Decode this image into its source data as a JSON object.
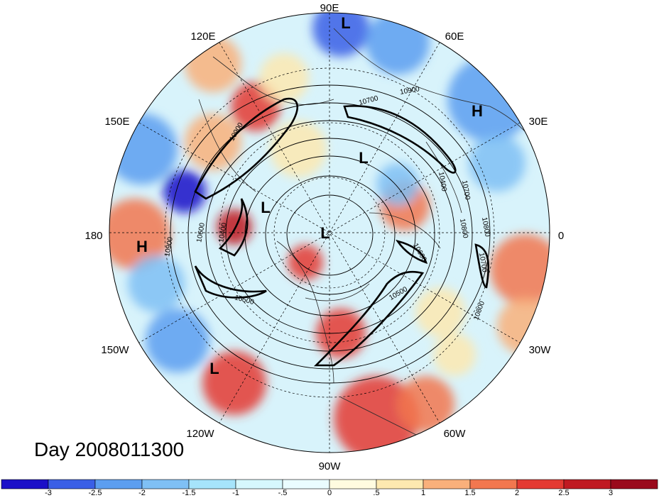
{
  "map": {
    "day_label": "Day 2008011300",
    "longitude_labels": [
      "90E",
      "60E",
      "30E",
      "0",
      "30W",
      "60W",
      "90W",
      "120W",
      "150W",
      "180",
      "150E",
      "120E"
    ],
    "pressure_systems": [
      {
        "type": "L",
        "name": "low-arctic-top"
      },
      {
        "type": "H",
        "name": "high-europe"
      },
      {
        "type": "L",
        "name": "low-siberia"
      },
      {
        "type": "L",
        "name": "low-east-siberia"
      },
      {
        "type": "L",
        "name": "low-pole"
      },
      {
        "type": "H",
        "name": "high-pacific"
      },
      {
        "type": "L",
        "name": "low-gulf-alaska"
      }
    ],
    "contour_labels": [
      "10900",
      "10700",
      "10900",
      "10900",
      "10600",
      "10400",
      "10400",
      "10700",
      "10800",
      "10800",
      "10500",
      "10600",
      "10500",
      "10800",
      "10700"
    ],
    "colors": {
      "land_outline": "#222222",
      "contour": "#000000",
      "grid": "#000000"
    }
  },
  "colorbar": {
    "tick_labels": [
      "-3",
      "-2.5",
      "-2",
      "-1.5",
      "-1",
      "-.5",
      "0",
      ".5",
      "1",
      "1.5",
      "2",
      "2.5",
      "3"
    ],
    "colors": [
      "#1b10c8",
      "#3a5fe6",
      "#5c9ef0",
      "#7fc0f5",
      "#a6e4fb",
      "#d6f7fd",
      "#eafcff",
      "#fffbe0",
      "#fde9b0",
      "#f9b07b",
      "#f2774f",
      "#e43a32",
      "#c01a22",
      "#9a0a1c"
    ]
  }
}
